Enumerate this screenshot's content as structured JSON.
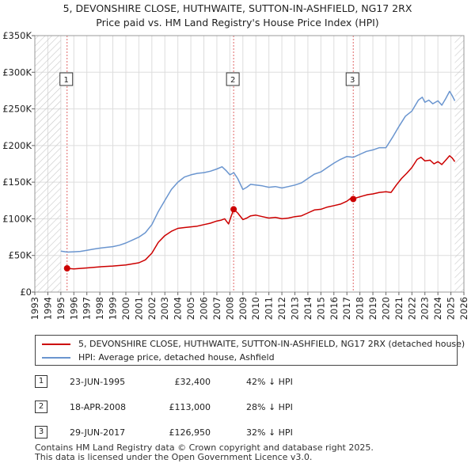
{
  "title_line1": "5, DEVONSHIRE CLOSE, HUTHWAITE, SUTTON-IN-ASHFIELD, NG17 2RX",
  "title_line2": "Price paid vs. HM Land Registry's House Price Index (HPI)",
  "colors": {
    "price": "#cc0000",
    "hpi": "#6a95cf",
    "grid": "#dddddd",
    "hatch": "#c8c8c8",
    "marker_line": "#e06666"
  },
  "chart_data": {
    "type": "line",
    "title": "Price paid vs. HM Land Registry's House Price Index (HPI)",
    "xlabel": "",
    "ylabel": "",
    "xlim": [
      1993,
      2026
    ],
    "ylim": [
      0,
      350000
    ],
    "y_ticks": [
      0,
      50000,
      100000,
      150000,
      200000,
      250000,
      300000,
      350000
    ],
    "y_tick_labels": [
      "£0",
      "£50K",
      "£100K",
      "£150K",
      "£200K",
      "£250K",
      "£300K",
      "£350K"
    ],
    "x_ticks": [
      1993,
      1994,
      1995,
      1996,
      1997,
      1998,
      1999,
      2000,
      2001,
      2002,
      2003,
      2004,
      2005,
      2006,
      2007,
      2008,
      2009,
      2010,
      2011,
      2012,
      2013,
      2014,
      2015,
      2016,
      2017,
      2018,
      2019,
      2020,
      2021,
      2022,
      2023,
      2024,
      2025,
      2026
    ],
    "x_tick_labels": [
      "1993",
      "1994",
      "1995",
      "1996",
      "1997",
      "1998",
      "1999",
      "2000",
      "2001",
      "2002",
      "2003",
      "2004",
      "2005",
      "2006",
      "2007",
      "2008",
      "2009",
      "2010",
      "2011",
      "2012",
      "2013",
      "2014",
      "2015",
      "2016",
      "2017",
      "2018",
      "2019",
      "2020",
      "2021",
      "2022",
      "2023",
      "2024",
      "2025",
      "2026"
    ],
    "data_range": [
      1995.0,
      2025.3
    ],
    "series": [
      {
        "name": "5, DEVONSHIRE CLOSE, HUTHWAITE, SUTTON-IN-ASHFIELD, NG17 2RX (detached house)",
        "color": "#cc0000",
        "x": [
          1995.48,
          1996,
          1997,
          1998,
          1999,
          2000,
          2001,
          2001.5,
          2002,
          2002.5,
          2003,
          2003.5,
          2004,
          2004.5,
          2005,
          2005.5,
          2006,
          2006.5,
          2007,
          2007.3,
          2007.6,
          2007.9,
          2008.29,
          2008.6,
          2009,
          2009.3,
          2009.6,
          2010,
          2010.5,
          2011,
          2011.5,
          2012,
          2012.5,
          2013,
          2013.5,
          2014,
          2014.5,
          2015,
          2015.5,
          2016,
          2016.5,
          2017,
          2017.3,
          2017.49,
          2017.8,
          2018.2,
          2018.6,
          2019,
          2019.5,
          2020,
          2020.4,
          2020.8,
          2021.2,
          2021.6,
          2022,
          2022.4,
          2022.7,
          2023,
          2023.4,
          2023.7,
          2024,
          2024.3,
          2024.6,
          2024.9,
          2025.1,
          2025.3
        ],
        "values": [
          32400,
          31500,
          33000,
          34500,
          35500,
          37000,
          40000,
          44000,
          53000,
          68000,
          77000,
          83000,
          87000,
          88000,
          89000,
          90000,
          92000,
          94000,
          97000,
          98000,
          100000,
          93000,
          113000,
          108000,
          99000,
          101000,
          104000,
          105000,
          103000,
          101000,
          102000,
          100000,
          101000,
          103000,
          104000,
          108000,
          112000,
          113000,
          116000,
          118000,
          120000,
          124000,
          128000,
          126950,
          129000,
          131000,
          133000,
          134000,
          136000,
          137000,
          136000,
          146000,
          155000,
          162000,
          170000,
          181000,
          184000,
          179000,
          180000,
          175000,
          178000,
          174000,
          180000,
          186000,
          183000,
          178000
        ]
      },
      {
        "name": "HPI: Average price, detached house, Ashfield",
        "color": "#6a95cf",
        "x": [
          1995,
          1995.5,
          1996,
          1996.5,
          1997,
          1997.5,
          1998,
          1998.5,
          1999,
          1999.5,
          2000,
          2000.5,
          2001,
          2001.5,
          2002,
          2002.5,
          2003,
          2003.5,
          2004,
          2004.5,
          2005,
          2005.5,
          2006,
          2006.5,
          2007,
          2007.4,
          2007.7,
          2008,
          2008.3,
          2008.6,
          2009,
          2009.3,
          2009.6,
          2010,
          2010.5,
          2011,
          2011.5,
          2012,
          2012.5,
          2013,
          2013.5,
          2014,
          2014.5,
          2015,
          2015.5,
          2016,
          2016.5,
          2017,
          2017.5,
          2018,
          2018.5,
          2019,
          2019.5,
          2020,
          2020.5,
          2021,
          2021.5,
          2022,
          2022.5,
          2022.8,
          2023,
          2023.3,
          2023.6,
          2024,
          2024.3,
          2024.6,
          2024.9,
          2025.1,
          2025.3
        ],
        "values": [
          56000,
          54500,
          55000,
          55500,
          57000,
          58500,
          60000,
          61000,
          62000,
          64000,
          67000,
          71000,
          75000,
          81000,
          92000,
          110000,
          125000,
          140000,
          150000,
          157000,
          160000,
          162000,
          163000,
          165000,
          168000,
          171000,
          166000,
          160000,
          163000,
          155000,
          140000,
          143000,
          147000,
          146000,
          145000,
          143000,
          144000,
          142000,
          144000,
          146000,
          149000,
          155000,
          161000,
          164000,
          170000,
          176000,
          181000,
          185000,
          184000,
          188000,
          192000,
          194000,
          197000,
          197000,
          211000,
          226000,
          240000,
          247000,
          262000,
          266000,
          259000,
          262000,
          257000,
          261000,
          255000,
          264000,
          274000,
          268000,
          261000
        ]
      }
    ],
    "sale_markers": [
      {
        "label": "1",
        "x": 1995.48,
        "value": 32400
      },
      {
        "label": "2",
        "x": 2008.29,
        "value": 113000
      },
      {
        "label": "3",
        "x": 2017.49,
        "value": 126950
      }
    ]
  },
  "legend": {
    "price_label": "5, DEVONSHIRE CLOSE, HUTHWAITE, SUTTON-IN-ASHFIELD, NG17 2RX (detached house)",
    "hpi_label": "HPI: Average price, detached house, Ashfield"
  },
  "transactions": [
    {
      "num": "1",
      "date": "23-JUN-1995",
      "price": "£32,400",
      "hpi": "42% ↓ HPI"
    },
    {
      "num": "2",
      "date": "18-APR-2008",
      "price": "£113,000",
      "hpi": "28% ↓ HPI"
    },
    {
      "num": "3",
      "date": "29-JUN-2017",
      "price": "£126,950",
      "hpi": "32% ↓ HPI"
    }
  ],
  "footer_line1": "Contains HM Land Registry data © Crown copyright and database right 2025.",
  "footer_line2": "This data is licensed under the Open Government Licence v3.0."
}
